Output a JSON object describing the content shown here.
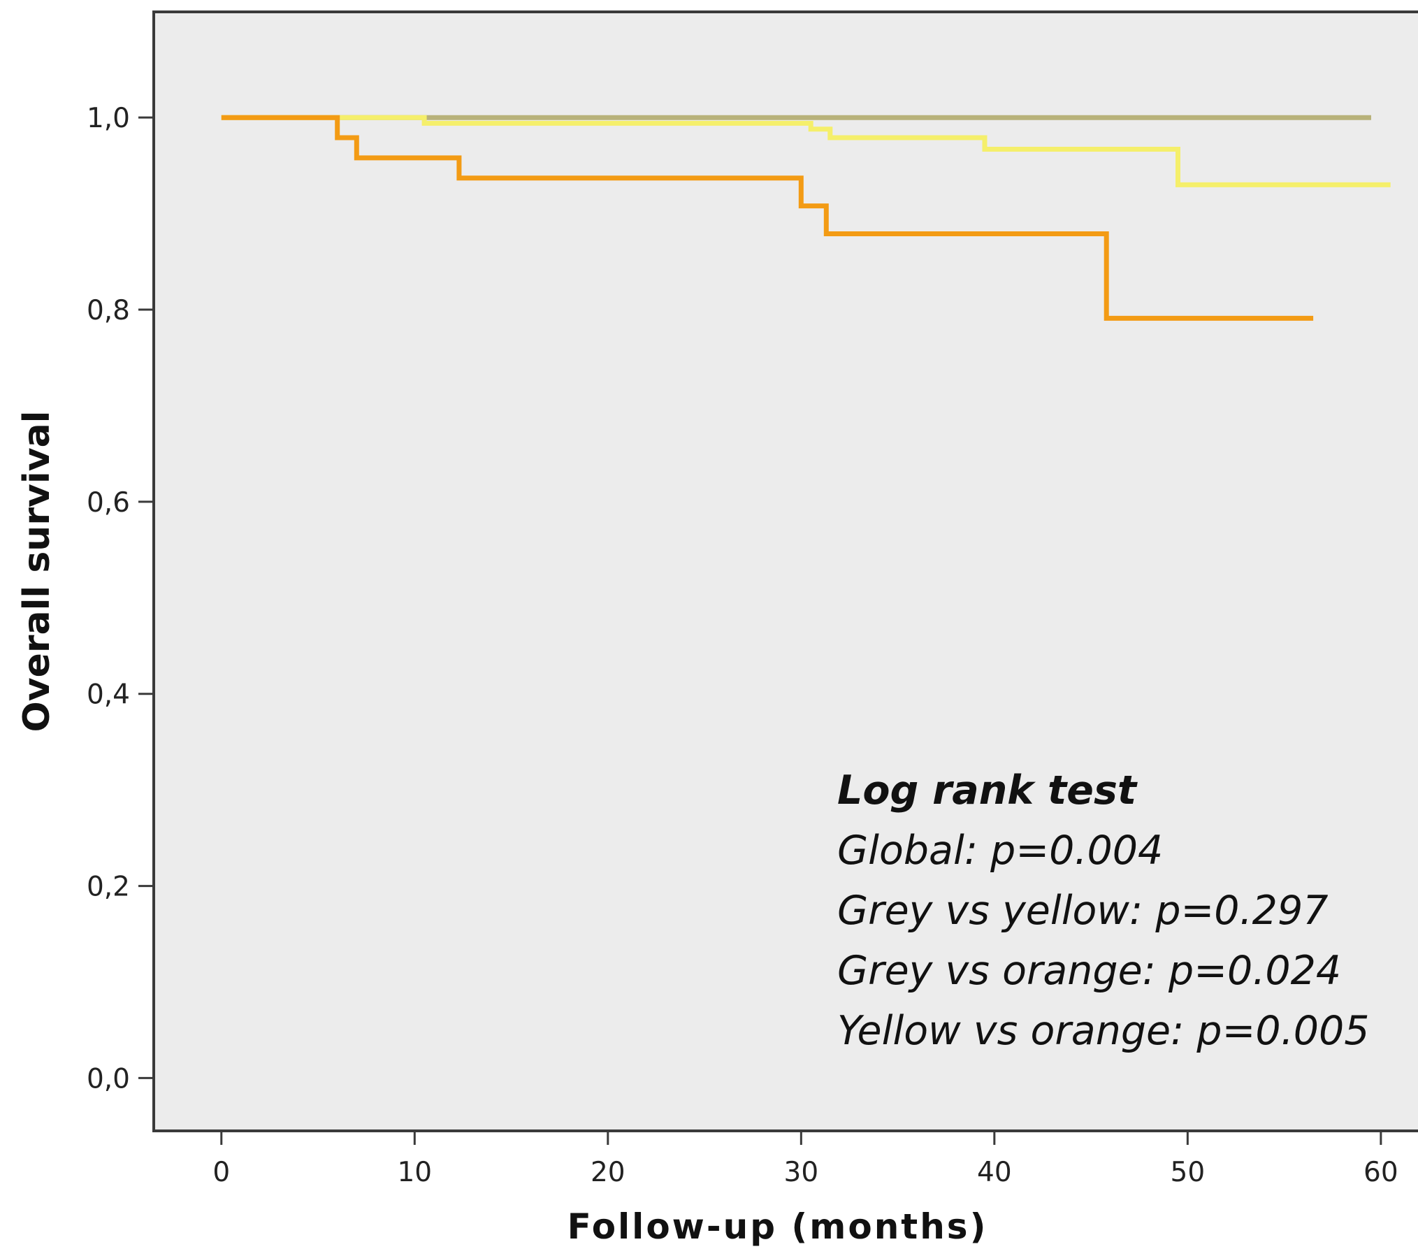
{
  "chart_data": {
    "type": "line",
    "step": "post",
    "title": "",
    "xlabel": "Follow-up (months)",
    "ylabel": "Overall survival",
    "xlim": [
      -3.5,
      62.5
    ],
    "ylim": [
      -0.055,
      1.11
    ],
    "x_ticks": [
      0,
      10,
      20,
      30,
      40,
      50,
      60
    ],
    "x_tick_labels": [
      "0",
      "10",
      "20",
      "30",
      "40",
      "50",
      "60"
    ],
    "y_ticks": [
      0.0,
      0.2,
      0.4,
      0.6,
      0.8,
      1.0
    ],
    "y_tick_labels": [
      "0,0",
      "0,2",
      "0,4",
      "0,6",
      "0,8",
      "1,0"
    ],
    "grid": false,
    "background_color": "#ececec",
    "series": [
      {
        "color": "#b8b27a",
        "x": [
          0,
          59.5
        ],
        "y": [
          1.0,
          1.0
        ]
      },
      {
        "color": "#f5ef6b",
        "x": [
          0,
          10.5,
          30.5,
          31.5,
          39.5,
          49.5,
          60.5
        ],
        "y": [
          1.0,
          0.994,
          0.988,
          0.979,
          0.967,
          0.93,
          0.93
        ]
      },
      {
        "color": "#f39b14",
        "x": [
          0,
          6,
          7,
          12.3,
          30,
          31.3,
          45.8,
          56.5
        ],
        "y": [
          1.0,
          0.979,
          0.958,
          0.937,
          0.908,
          0.879,
          0.791,
          0.791
        ]
      }
    ],
    "annotation": {
      "title": "Log rank test",
      "lines": [
        "Global: p=0.004",
        "Grey vs yellow: p=0.297",
        "Grey vs orange: p=0.024",
        "Yellow vs orange: p=0.005"
      ]
    }
  }
}
